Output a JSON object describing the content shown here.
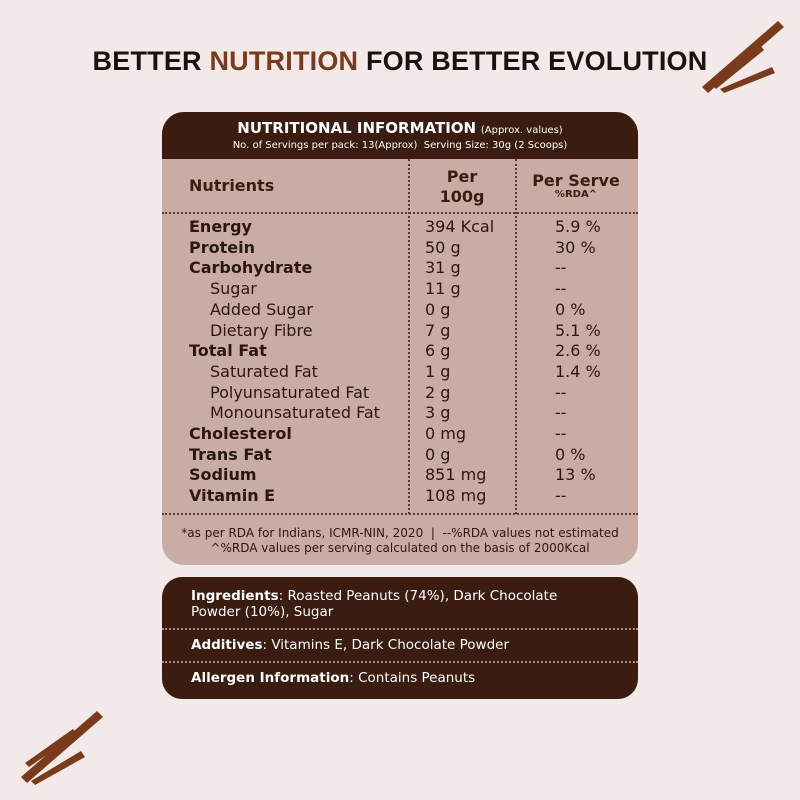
{
  "title": {
    "before": "BETTER",
    "highlight": "NUTRITION",
    "after": "FOR BETTER EVOLUTION"
  },
  "table": {
    "heading": "NUTRITIONAL INFORMATION",
    "heading_note": "(Approx. values)",
    "serving_info": "No. of Servings per pack: 13(Approx)  Serving Size: 30g (2 Scoops)",
    "columns": {
      "nutrients": "Nutrients",
      "per_100g": "Per 100g",
      "per_serve": "Per Serve",
      "rda": "%RDA^"
    },
    "rows": [
      {
        "name": "Energy",
        "per_100g": "394 Kcal",
        "rda": "5.9 %"
      },
      {
        "name": "Protein",
        "per_100g": "50 g",
        "rda": "30 %"
      },
      {
        "name": "Carbohydrate",
        "per_100g": "31 g",
        "rda": "--",
        "subrows": [
          {
            "name": "Sugar",
            "per_100g": "11 g",
            "rda": "--"
          },
          {
            "name": "Added Sugar",
            "per_100g": "0 g",
            "rda": "0 %"
          },
          {
            "name": "Dietary Fibre",
            "per_100g": "7 g",
            "rda": "5.1 %"
          }
        ]
      },
      {
        "name": "Total Fat",
        "per_100g": "6 g",
        "rda": "2.6 %",
        "subrows": [
          {
            "name": "Saturated Fat",
            "per_100g": "1 g",
            "rda": "1.4 %"
          },
          {
            "name": "Polyunsaturated Fat",
            "per_100g": "2 g",
            "rda": "--"
          },
          {
            "name": "Monounsaturated Fat",
            "per_100g": "3 g",
            "rda": "--"
          }
        ]
      },
      {
        "name": "Cholesterol",
        "per_100g": "0 mg",
        "rda": "--"
      },
      {
        "name": "Trans Fat",
        "per_100g": "0 g",
        "rda": "0 %"
      },
      {
        "name": "Sodium",
        "per_100g": "851 mg",
        "rda": "13 %"
      },
      {
        "name": "Vitamin E",
        "per_100g": "108 mg",
        "rda": "--"
      }
    ],
    "footnotes": [
      "*as per RDA for Indians, ICMR-NIN, 2020  |  --%RDA values not estimated",
      "^%RDA values per serving calculated on the basis of 2000Kcal"
    ]
  },
  "ingredients": [
    {
      "label": "Ingredients",
      "text": ": Roasted Peanuts (74%), Dark Chocolate Powder (10%), Sugar"
    },
    {
      "label": "Additives",
      "text": ": Vitamins E, Dark Chocolate Powder"
    },
    {
      "label": "Allergen Information",
      "text": ": Contains Peanuts"
    }
  ]
}
